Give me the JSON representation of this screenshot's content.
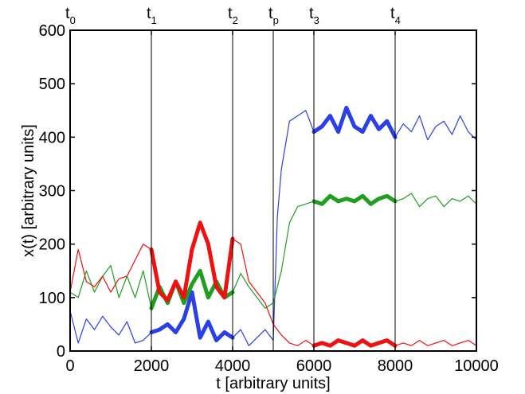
{
  "chart_data": {
    "type": "line",
    "xlabel": "t [arbitrary units]",
    "ylabel": "x(t) [arbitrary units]",
    "xlim": [
      0,
      10000
    ],
    "ylim": [
      0,
      600
    ],
    "xticks": [
      0,
      2000,
      4000,
      6000,
      8000,
      10000
    ],
    "yticks": [
      0,
      100,
      200,
      300,
      400,
      500,
      600
    ],
    "grid": false,
    "legend": "none",
    "time_markers": [
      {
        "base": "t",
        "sub": "0",
        "x": 0
      },
      {
        "base": "t",
        "sub": "1",
        "x": 2000
      },
      {
        "base": "t",
        "sub": "2",
        "x": 4000
      },
      {
        "base": "t",
        "sub": "p",
        "x": 5000
      },
      {
        "base": "t",
        "sub": "3",
        "x": 6000
      },
      {
        "base": "t",
        "sub": "4",
        "x": 8000
      }
    ],
    "series": [
      {
        "color": "#2a3fe6",
        "x": [
          0,
          200,
          400,
          600,
          800,
          1000,
          1200,
          1400,
          1600,
          1800,
          2000,
          2200,
          2400,
          2600,
          2800,
          3000,
          3200,
          3400,
          3600,
          3800,
          4000,
          4200,
          4400,
          4600,
          4800,
          5000,
          5100,
          5200,
          5400,
          5600,
          5800,
          6000,
          6200,
          6400,
          6600,
          6800,
          7000,
          7200,
          7400,
          7600,
          7800,
          8000,
          8200,
          8400,
          8600,
          8800,
          9000,
          9200,
          9400,
          9600,
          9800,
          10000
        ],
        "values": [
          75,
          15,
          60,
          40,
          65,
          45,
          30,
          55,
          15,
          20,
          35,
          40,
          50,
          35,
          60,
          110,
          25,
          55,
          20,
          35,
          25,
          40,
          10,
          25,
          40,
          20,
          250,
          340,
          430,
          440,
          450,
          410,
          420,
          440,
          410,
          455,
          420,
          410,
          440,
          415,
          430,
          400,
          425,
          410,
          440,
          395,
          420,
          430,
          405,
          440,
          410,
          395
        ],
        "highlight_range": [
          [
            2000,
            4000
          ],
          [
            6000,
            8000
          ]
        ]
      },
      {
        "color": "#1f9e1f",
        "x": [
          0,
          200,
          400,
          600,
          800,
          1000,
          1200,
          1400,
          1600,
          1800,
          2000,
          2200,
          2400,
          2600,
          2800,
          3000,
          3200,
          3400,
          3600,
          3800,
          4000,
          4200,
          4400,
          4600,
          4800,
          5000,
          5200,
          5400,
          5600,
          5800,
          6000,
          6200,
          6400,
          6600,
          6800,
          7000,
          7200,
          7400,
          7600,
          7800,
          8000,
          8200,
          8400,
          8600,
          8800,
          9000,
          9200,
          9400,
          9600,
          9800,
          10000
        ],
        "values": [
          110,
          100,
          150,
          110,
          140,
          160,
          100,
          140,
          100,
          150,
          80,
          120,
          90,
          130,
          90,
          125,
          150,
          100,
          130,
          100,
          110,
          145,
          120,
          100,
          80,
          90,
          150,
          240,
          270,
          275,
          280,
          275,
          290,
          280,
          285,
          280,
          290,
          275,
          285,
          290,
          280,
          285,
          295,
          270,
          285,
          290,
          270,
          285,
          280,
          290,
          275
        ],
        "highlight_range": [
          [
            2000,
            4000
          ],
          [
            6000,
            8000
          ]
        ]
      },
      {
        "color": "#ee1111",
        "x": [
          0,
          200,
          400,
          600,
          800,
          1000,
          1200,
          1400,
          1600,
          1800,
          2000,
          2200,
          2400,
          2600,
          2800,
          3000,
          3200,
          3400,
          3600,
          3800,
          4000,
          4200,
          4400,
          4600,
          4800,
          5000,
          5200,
          5400,
          5600,
          5800,
          6000,
          6200,
          6400,
          6600,
          6800,
          7000,
          7200,
          7400,
          7600,
          7800,
          8000,
          8200,
          8400,
          8600,
          8800,
          9000,
          9200,
          9400,
          9600,
          9800,
          10000
        ],
        "values": [
          110,
          190,
          130,
          120,
          140,
          110,
          135,
          140,
          170,
          200,
          190,
          110,
          95,
          130,
          100,
          190,
          240,
          200,
          120,
          100,
          210,
          200,
          130,
          110,
          90,
          50,
          30,
          15,
          10,
          20,
          10,
          15,
          10,
          20,
          15,
          10,
          20,
          10,
          15,
          20,
          10,
          15,
          10,
          20,
          10,
          15,
          20,
          10,
          15,
          20,
          10
        ],
        "highlight_range": [
          [
            2000,
            4000
          ],
          [
            6000,
            8000
          ]
        ]
      }
    ]
  }
}
